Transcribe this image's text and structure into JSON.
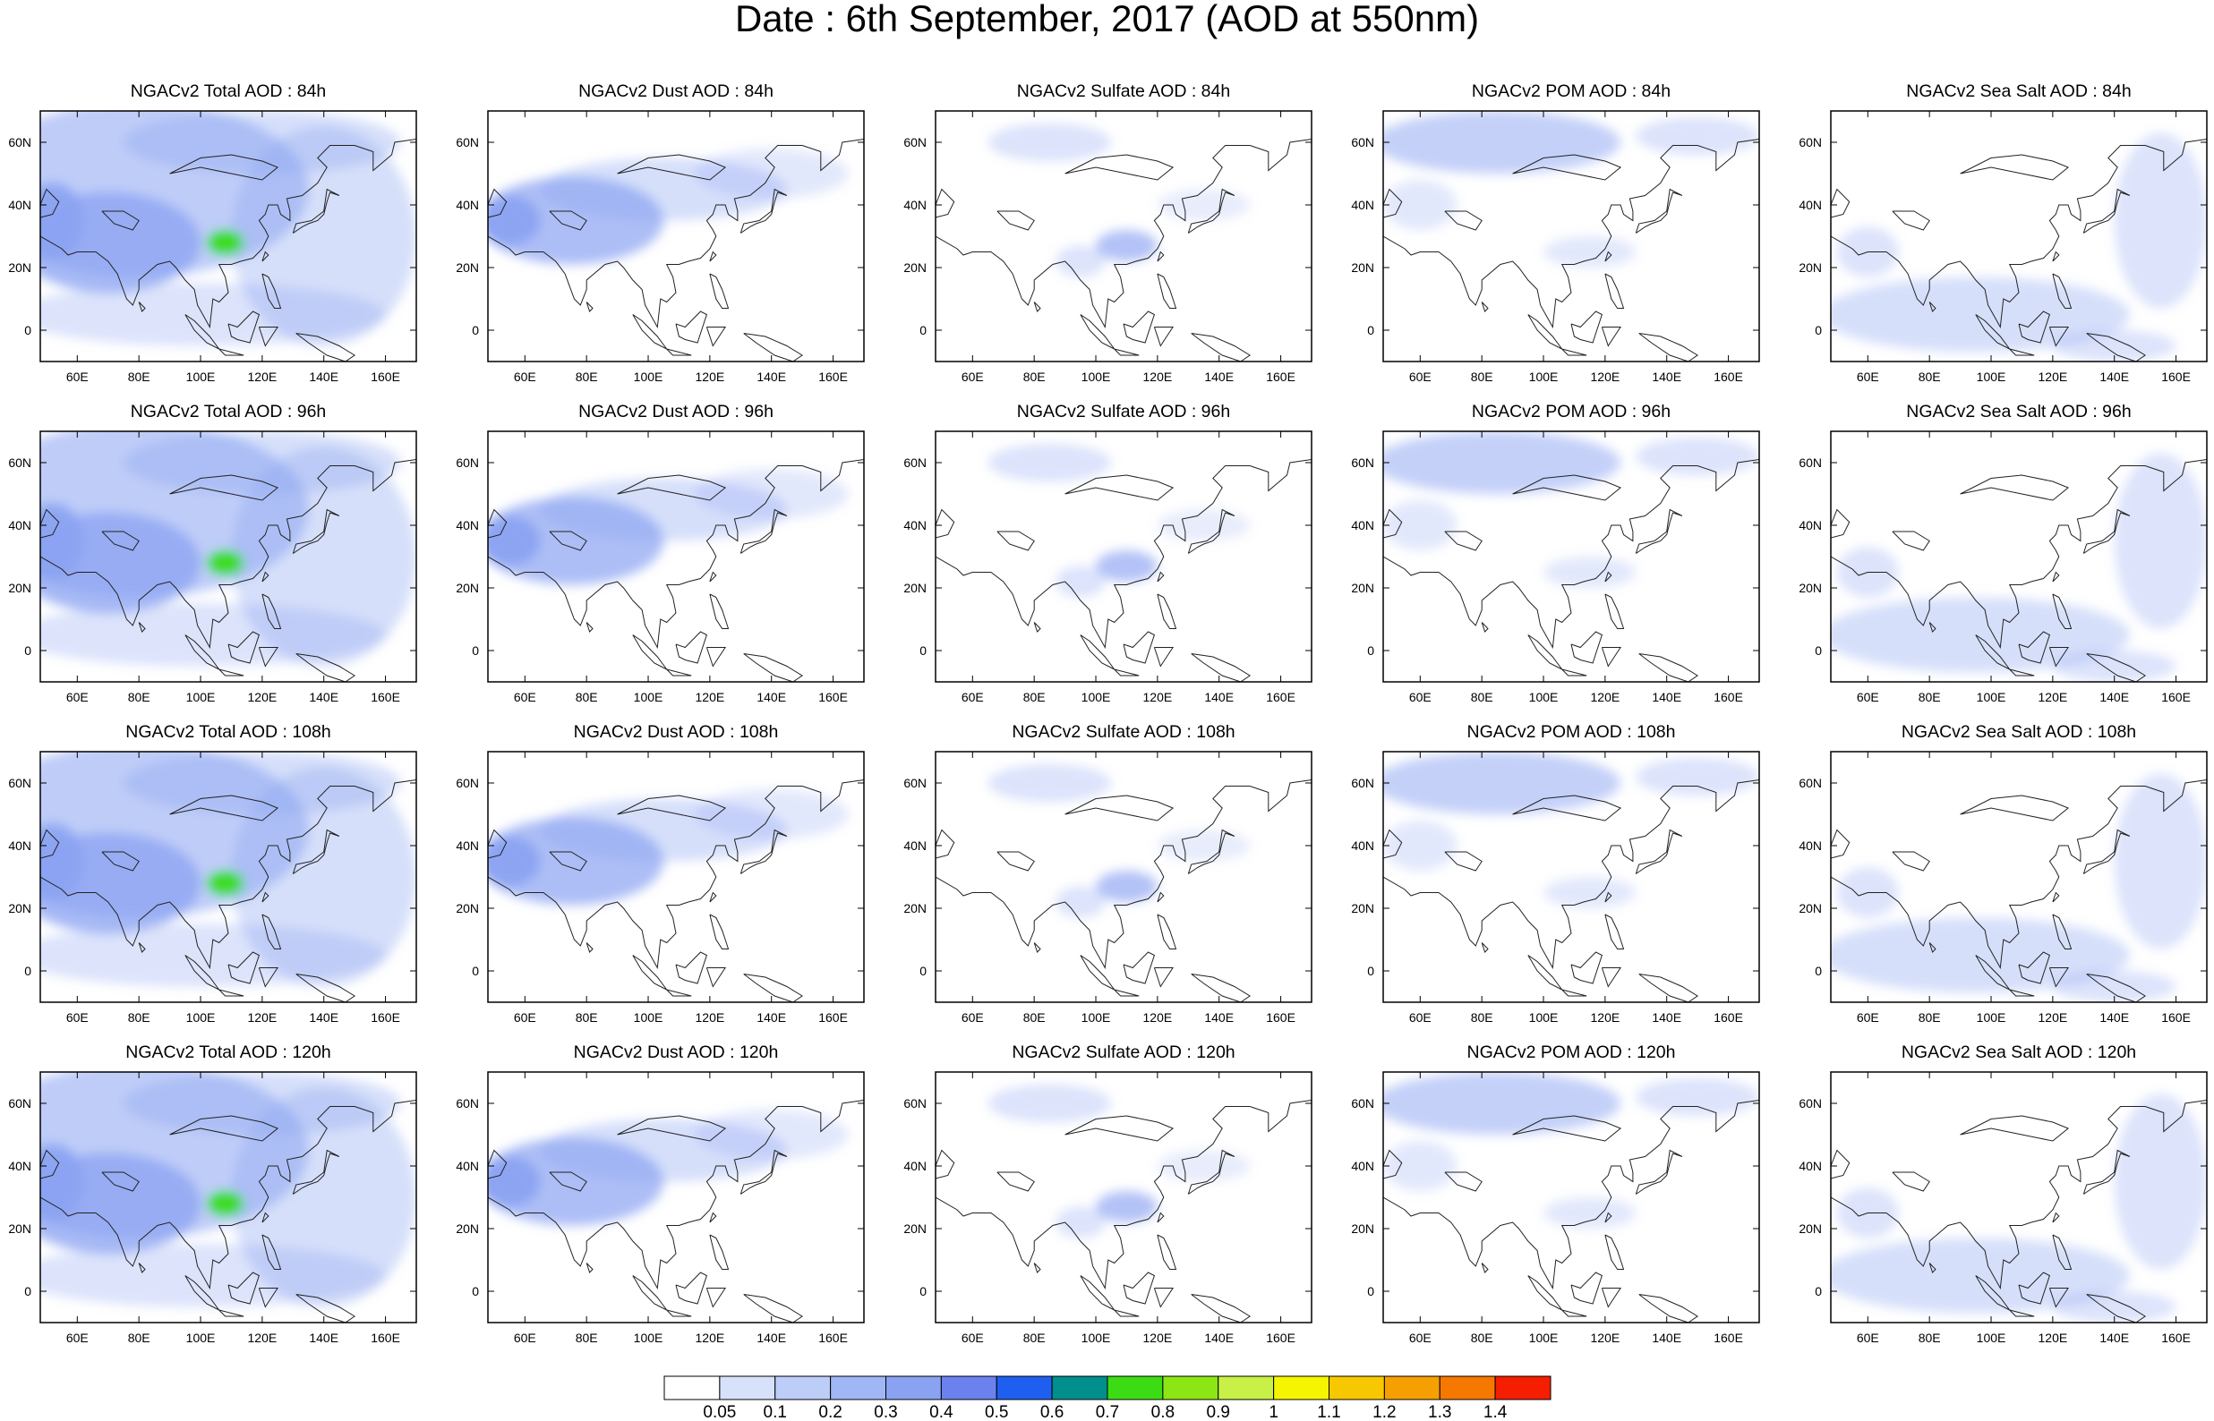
{
  "title": "Date : 6th September, 2017 (AOD at 550nm)",
  "panels": [
    [
      {
        "title": "NGACv2 Total AOD : 84h",
        "field": "total"
      },
      {
        "title": "NGACv2 Dust AOD : 84h",
        "field": "dust"
      },
      {
        "title": "NGACv2 Sulfate AOD : 84h",
        "field": "sulfate"
      },
      {
        "title": "NGACv2 POM AOD : 84h",
        "field": "pom"
      },
      {
        "title": "NGACv2 Sea Salt AOD : 84h",
        "field": "seasalt"
      }
    ],
    [
      {
        "title": "NGACv2 Total AOD : 96h",
        "field": "total"
      },
      {
        "title": "NGACv2 Dust AOD : 96h",
        "field": "dust"
      },
      {
        "title": "NGACv2 Sulfate AOD : 96h",
        "field": "sulfate"
      },
      {
        "title": "NGACv2 POM AOD : 96h",
        "field": "pom"
      },
      {
        "title": "NGACv2 Sea Salt AOD : 96h",
        "field": "seasalt"
      }
    ],
    [
      {
        "title": "NGACv2 Total AOD : 108h",
        "field": "total"
      },
      {
        "title": "NGACv2 Dust AOD : 108h",
        "field": "dust"
      },
      {
        "title": "NGACv2 Sulfate AOD : 108h",
        "field": "sulfate"
      },
      {
        "title": "NGACv2 POM AOD : 108h",
        "field": "pom"
      },
      {
        "title": "NGACv2 Sea Salt AOD : 108h",
        "field": "seasalt"
      }
    ],
    [
      {
        "title": "NGACv2 Total AOD : 120h",
        "field": "total"
      },
      {
        "title": "NGACv2 Dust AOD : 120h",
        "field": "dust"
      },
      {
        "title": "NGACv2 Sulfate AOD : 120h",
        "field": "sulfate"
      },
      {
        "title": "NGACv2 POM AOD : 120h",
        "field": "pom"
      },
      {
        "title": "NGACv2 Sea Salt  AOD : 120h",
        "field": "seasalt"
      }
    ]
  ],
  "map": {
    "lon_range": [
      48,
      170
    ],
    "lat_range": [
      -10,
      70
    ],
    "lon_ticks": [
      60,
      80,
      100,
      120,
      140,
      160
    ],
    "lon_tick_labels": [
      "60E",
      "80E",
      "100E",
      "120E",
      "140E",
      "160E"
    ],
    "lat_ticks": [
      0,
      20,
      40,
      60
    ],
    "lat_tick_labels": [
      "0",
      "20N",
      "40N",
      "60N"
    ]
  },
  "colorbar": {
    "labels": [
      "0.05",
      "0.1",
      "0.2",
      "0.3",
      "0.4",
      "0.5",
      "0.6",
      "0.7",
      "0.8",
      "0.9",
      "1",
      "1.1",
      "1.2",
      "1.3",
      "1.4"
    ],
    "colors": [
      "#ffffff",
      "#d7e1fa",
      "#bccdf8",
      "#a0b7f5",
      "#8aa2f2",
      "#6b82ee",
      "#1f5ff0",
      "#008f8c",
      "#3cdc14",
      "#8ce614",
      "#c8f046",
      "#f5f500",
      "#f7c800",
      "#f5a000",
      "#f57800",
      "#f51e00"
    ]
  }
}
